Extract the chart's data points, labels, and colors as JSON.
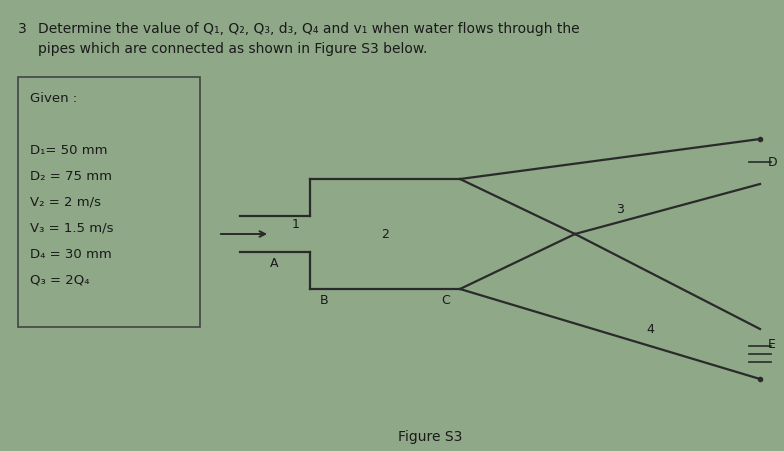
{
  "bg_color": "#8fa888",
  "pipe_color": "#2a2a2a",
  "text_color": "#1a1a1a",
  "title_line1": "Determine the value of Q₁, Q₂, Q₃, d₃, Q₄ and v₁ when water flows through the",
  "title_line2": "pipes which are connected as shown in Figure S3 below.",
  "given_lines": [
    "Given :",
    "",
    "D₁= 50 mm",
    "D₂ = 75 mm",
    "V₂ = 2 m/s",
    "V₃ = 1.5 m/s",
    "D₄ = 30 mm",
    "Q₃ = 2Q₄"
  ],
  "figure_label": "Figure S3",
  "pipe_lw": 1.6
}
